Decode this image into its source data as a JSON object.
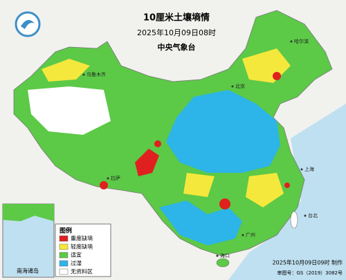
{
  "header": {
    "title": "10厘米土壤墒情",
    "time": "2025年10月09日08时",
    "agency": "中央气象台"
  },
  "legend": {
    "title": "图例",
    "items": [
      {
        "label": "重度缺墒",
        "color": "#e0201e"
      },
      {
        "label": "轻度缺墒",
        "color": "#f5e83c"
      },
      {
        "label": "适宜",
        "color": "#5cc947"
      },
      {
        "label": "过湿",
        "color": "#2db4e8"
      },
      {
        "label": "无资料区",
        "color": "#ffffff"
      }
    ]
  },
  "inset": {
    "label": "南海诸岛"
  },
  "places": [
    "上海",
    "北京",
    "广州",
    "海口",
    "台北",
    "乌鲁木齐",
    "拉萨",
    "哈尔滨"
  ],
  "footer": {
    "made": "2025年10月09日09时 制作",
    "approval": "审图号：GS（2019）3082号"
  }
}
